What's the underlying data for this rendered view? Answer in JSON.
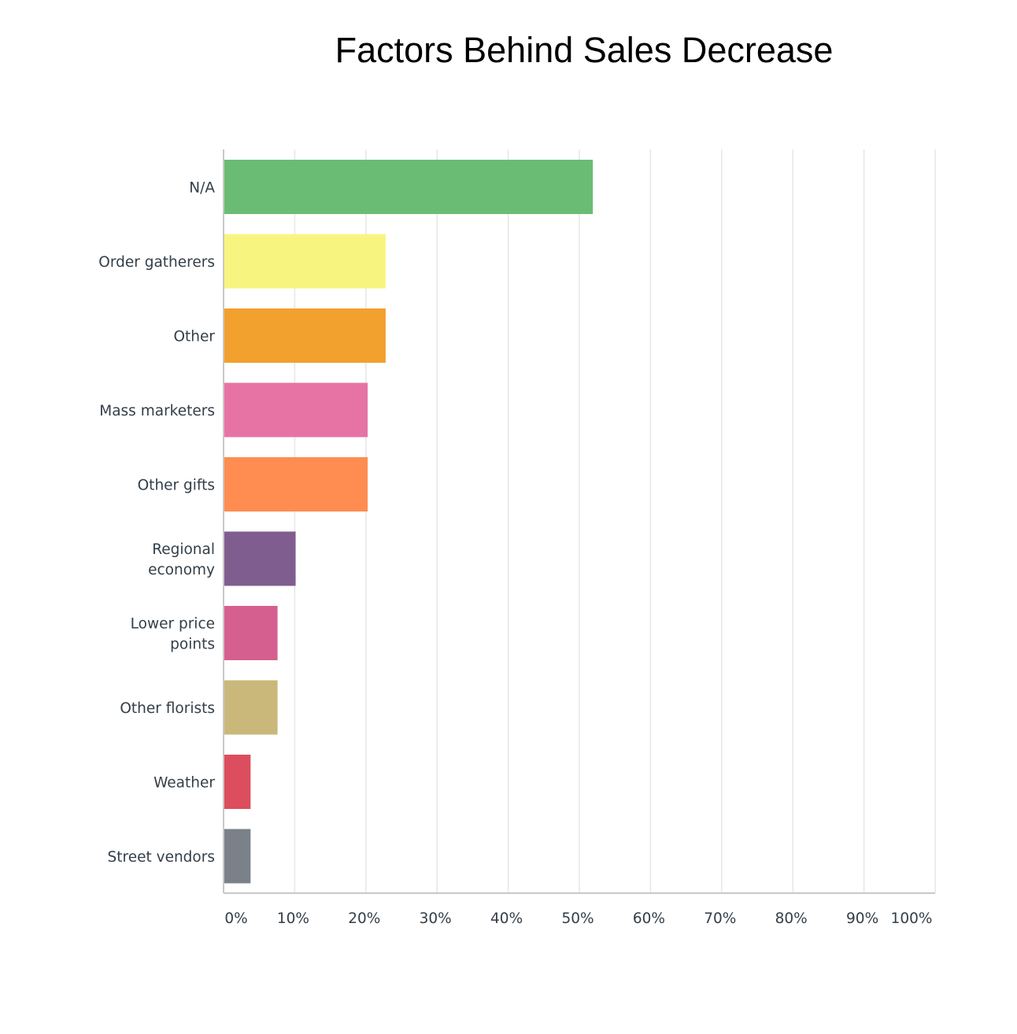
{
  "chart_data": {
    "type": "bar",
    "orientation": "horizontal",
    "title": "Factors Behind Sales Decrease",
    "xlabel": "",
    "ylabel": "",
    "xlim": [
      0,
      100
    ],
    "grid": true,
    "categories": [
      "N/A",
      "Order gatherers",
      "Other",
      "Mass marketers",
      "Other gifts",
      "Regional economy",
      "Lower price points",
      "Other florists",
      "Weather",
      "Street vendors"
    ],
    "category_lines": [
      [
        "N/A"
      ],
      [
        "Order gatherers"
      ],
      [
        "Other"
      ],
      [
        "Mass marketers"
      ],
      [
        "Other gifts"
      ],
      [
        "Regional",
        "economy"
      ],
      [
        "Lower price",
        "points"
      ],
      [
        "Other florists"
      ],
      [
        "Weather"
      ],
      [
        "Street vendors"
      ]
    ],
    "values": [
      51.9,
      22.78,
      22.78,
      20.25,
      20.25,
      10.13,
      7.59,
      7.59,
      3.8,
      3.8
    ],
    "colors": [
      "#6abc74",
      "#f7f57f",
      "#f2a02e",
      "#e673a3",
      "#ff8c50",
      "#7f5e8f",
      "#d5608f",
      "#c9b87a",
      "#dc4e5e",
      "#7b8188"
    ],
    "ticks": [
      "0%",
      "10%",
      "20%",
      "30%",
      "40%",
      "50%",
      "60%",
      "70%",
      "80%",
      "90%",
      "100%"
    ]
  }
}
